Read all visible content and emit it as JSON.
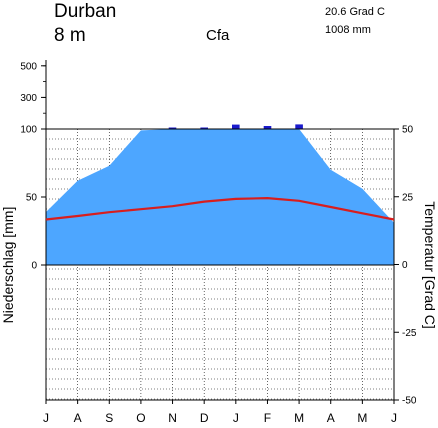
{
  "chart_data": {
    "type": "area",
    "station": "Durban",
    "elevation": "8 m",
    "climate_class": "Cfa",
    "mean_temperature": "20.6 Grad C",
    "annual_precipitation": "1008 mm",
    "ylabel_left": "Niederschlag [mm]",
    "ylabel_right": "Temperatur [Grad C]",
    "months": [
      "J",
      "A",
      "S",
      "O",
      "N",
      "D",
      "J",
      "F",
      "M",
      "A",
      "M",
      "J"
    ],
    "precip_ticks": [
      "0",
      "50",
      "100",
      "300",
      "500"
    ],
    "temp_ticks": [
      "-50",
      "-25",
      "0",
      "25",
      "50"
    ],
    "precipitation_mm": [
      39,
      62,
      73,
      99,
      102,
      101,
      128,
      119,
      129,
      70,
      56,
      31
    ],
    "temperature_c": [
      16.6,
      17.9,
      19.3,
      20.4,
      21.5,
      23.2,
      24.2,
      24.5,
      23.5,
      21.2,
      18.9,
      16.6
    ],
    "precip_scale": "0–100 mm linear, above 100 mm compressed",
    "temp_range": [
      -50,
      50
    ],
    "colors": {
      "precipitation": "#4da6ff",
      "excess_precipitation": "#1a1acc",
      "temperature": "#d81e1e",
      "axes": "#000000"
    },
    "grid": true
  }
}
